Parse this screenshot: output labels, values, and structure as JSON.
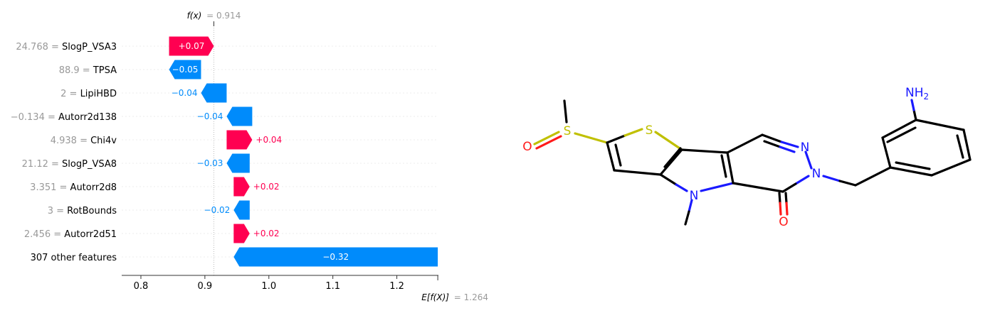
{
  "chart_data": {
    "type": "waterfall",
    "fx": {
      "label": "f(x)",
      "value": "0.914",
      "x": 0.914
    },
    "expected": {
      "label": "E[f(X)]",
      "value": "1.264",
      "x": 1.264
    },
    "xlim": [
      0.77,
      1.265
    ],
    "xticks": [
      {
        "value": 0.8,
        "label": "0.8"
      },
      {
        "value": 0.9,
        "label": "0.9"
      },
      {
        "value": 1.0,
        "label": "1.0"
      },
      {
        "value": 1.1,
        "label": "1.1"
      },
      {
        "value": 1.2,
        "label": "1.2"
      }
    ],
    "rows": [
      {
        "value_text": "24.768",
        "feature": "SlogP_VSA3",
        "start": 0.844,
        "end": 0.914,
        "label": "+0.07",
        "label_inside": true
      },
      {
        "value_text": "88.9",
        "feature": "TPSA",
        "start": 0.894,
        "end": 0.844,
        "label": "−0.05",
        "label_inside": true
      },
      {
        "value_text": "2",
        "feature": "LipiHBD",
        "start": 0.934,
        "end": 0.894,
        "label": "−0.04",
        "label_inside": false
      },
      {
        "value_text": "−0.134",
        "feature": "Autorr2d138",
        "start": 0.974,
        "end": 0.934,
        "label": "−0.04",
        "label_inside": false
      },
      {
        "value_text": "4.938",
        "feature": "Chi4v",
        "start": 0.934,
        "end": 0.974,
        "label": "+0.04",
        "label_inside": false
      },
      {
        "value_text": "21.12",
        "feature": "SlogP_VSA8",
        "start": 0.97,
        "end": 0.934,
        "label": "−0.03",
        "label_inside": false
      },
      {
        "value_text": "3.351",
        "feature": "Autorr2d8",
        "start": 0.945,
        "end": 0.97,
        "label": "+0.02",
        "label_inside": false
      },
      {
        "value_text": "3",
        "feature": "RotBounds",
        "start": 0.97,
        "end": 0.945,
        "label": "−0.02",
        "label_inside": false
      },
      {
        "value_text": "2.456",
        "feature": "Autorr2d51",
        "start": 0.945,
        "end": 0.97,
        "label": "+0.02",
        "label_inside": false
      },
      {
        "value_text": "",
        "feature": "307 other features",
        "start": 1.264,
        "end": 0.945,
        "label": "−0.32",
        "label_inside": true
      }
    ],
    "colors": {
      "positive": "#ff0051",
      "negative": "#008bfb",
      "grid": "#eeeeee",
      "axis": "#333333",
      "muted": "#999999"
    }
  },
  "molecule": {
    "atom_labels": {
      "oxygen_sulfoxide": "O",
      "sulfur_sulfoxide": "S",
      "sulfur_ring": "S",
      "nitrogen_pyrrole": "N",
      "nitrogen_1": "N",
      "nitrogen_2": "N",
      "oxygen_carbonyl": "O",
      "amine": "NH",
      "amine_sub": "2"
    },
    "colors": {
      "carbon": "#000000",
      "sulfur": "#c0c000",
      "nitrogen": "#1a1aff",
      "oxygen": "#ff1a1a"
    }
  }
}
